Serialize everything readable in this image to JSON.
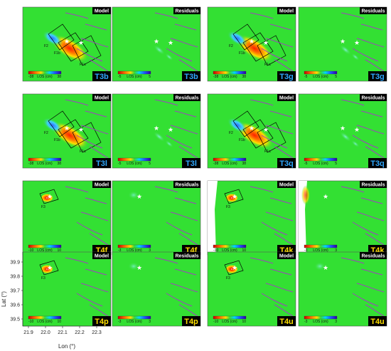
{
  "figure": {
    "panels": [
      {
        "header": "Model",
        "tag": "T3b",
        "tag_style": "blue",
        "kind": "model",
        "cb_min": "-38",
        "cb_mid": "LOS (cm)",
        "cb_max": "38",
        "faults": [
          "F2",
          "F1b",
          "F1a"
        ]
      },
      {
        "header": "Residuals",
        "tag": "T3b",
        "tag_style": "blue",
        "kind": "resid",
        "cb_min": "-5",
        "cb_mid": "LOS (cm)",
        "cb_max": "5",
        "faults": []
      },
      {
        "header": "Model",
        "tag": "T3g",
        "tag_style": "blue",
        "kind": "model",
        "cb_min": "-38",
        "cb_mid": "LOS (cm)",
        "cb_max": "38",
        "faults": [
          "F2",
          "F1b",
          "F1a"
        ]
      },
      {
        "header": "Residuals",
        "tag": "T3g",
        "tag_style": "blue",
        "kind": "resid",
        "cb_min": "-5",
        "cb_mid": "LOS (cm)",
        "cb_max": "5",
        "faults": []
      },
      {
        "header": "Model",
        "tag": "T3l",
        "tag_style": "blue",
        "kind": "model",
        "cb_min": "-38",
        "cb_mid": "LOS (cm)",
        "cb_max": "38",
        "faults": [
          "F2",
          "F1b",
          "F1a"
        ]
      },
      {
        "header": "Residuals",
        "tag": "T3l",
        "tag_style": "blue",
        "kind": "resid",
        "cb_min": "-5",
        "cb_mid": "LOS (cm)",
        "cb_max": "5",
        "faults": []
      },
      {
        "header": "Model",
        "tag": "T3q",
        "tag_style": "blue",
        "kind": "model",
        "cb_min": "-38",
        "cb_mid": "LOS (cm)",
        "cb_max": "38",
        "faults": [
          "F2",
          "F1b",
          "F1a"
        ]
      },
      {
        "header": "Residuals",
        "tag": "T3q",
        "tag_style": "blue",
        "kind": "resid",
        "cb_min": "-5",
        "cb_mid": "LOS (cm)",
        "cb_max": "5",
        "faults": []
      },
      {
        "header": "Model",
        "tag": "T4f",
        "tag_style": "yellow",
        "kind": "model4",
        "cb_min": "-10",
        "cb_mid": "LOS (cm)",
        "cb_max": "10",
        "faults": [
          "F3"
        ]
      },
      {
        "header": "Residuals",
        "tag": "T4f",
        "tag_style": "yellow",
        "kind": "resid4",
        "cb_min": "-3",
        "cb_mid": "LOS (cm)",
        "cb_max": "3",
        "faults": []
      },
      {
        "header": "Model",
        "tag": "T4k",
        "tag_style": "yellow",
        "kind": "model4k",
        "cb_min": "-10",
        "cb_mid": "LOS (cm)",
        "cb_max": "10",
        "faults": [
          "F3"
        ]
      },
      {
        "header": "Residuals",
        "tag": "T4k",
        "tag_style": "yellow",
        "kind": "resid4k",
        "cb_min": "-3",
        "cb_mid": "LOS (cm)",
        "cb_max": "3",
        "faults": []
      },
      {
        "header": "Model",
        "tag": "T4p",
        "tag_style": "yellow",
        "kind": "model4",
        "cb_min": "-10",
        "cb_mid": "LOS (cm)",
        "cb_max": "10",
        "faults": [
          "F3"
        ]
      },
      {
        "header": "Residuals",
        "tag": "T4p",
        "tag_style": "yellow",
        "kind": "resid4",
        "cb_min": "-3",
        "cb_mid": "LOS (cm)",
        "cb_max": "3",
        "faults": []
      },
      {
        "header": "Model",
        "tag": "T4u",
        "tag_style": "yellow",
        "kind": "model4",
        "cb_min": "-10",
        "cb_mid": "LOS (cm)",
        "cb_max": "10",
        "faults": [
          "F3"
        ]
      },
      {
        "header": "Residuals",
        "tag": "T4u",
        "tag_style": "yellow",
        "kind": "resid4",
        "cb_min": "-3",
        "cb_mid": "LOS (cm)",
        "cb_max": "3",
        "faults": []
      }
    ],
    "lat_axis": {
      "label": "Lat (°)",
      "ticks": [
        "39.9",
        "39.8",
        "39.7",
        "39.6",
        "39.5"
      ]
    },
    "lon_axis": {
      "label": "Lon (°)",
      "ticks": [
        "21.9",
        "22.0",
        "22.1",
        "22.2",
        "22.3"
      ]
    },
    "colors": {
      "background": "#33e033",
      "uplift": "#d83010",
      "dip": "#2060e0",
      "fault_trace": "#a040c0",
      "tag_blue_bg": "#000000",
      "tag_blue_fg": "#30a8ff",
      "tag_yellow_fg": "#ffe000"
    }
  }
}
